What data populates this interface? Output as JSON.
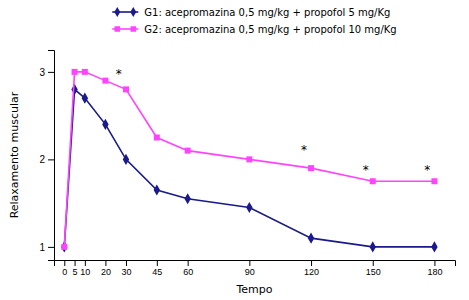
{
  "chart_data": {
    "type": "line",
    "x": [
      0,
      5,
      10,
      20,
      30,
      45,
      60,
      90,
      120,
      150,
      180
    ],
    "series": [
      {
        "name": "G1: acepromazina 0,5 mg/kg + propofol 5 mg/Kg",
        "color": "#1a1a8c",
        "marker": "diamond",
        "values": [
          1.0,
          2.8,
          2.7,
          2.4,
          2.0,
          1.65,
          1.55,
          1.45,
          1.1,
          1.0,
          1.0
        ]
      },
      {
        "name": "G2: acepromazina 0,5 mg/kg + propofol 10 mg/Kg",
        "color": "#FF44FF",
        "marker": "square",
        "values": [
          1.0,
          3.0,
          3.0,
          2.9,
          2.8,
          2.25,
          2.1,
          2.0,
          1.9,
          1.75,
          1.75
        ]
      }
    ],
    "xlabel": "Tempo",
    "ylabel": "Relaxamento muscular",
    "xlim": [
      -5,
      190
    ],
    "ylim": [
      0.85,
      3.25
    ],
    "xticks": [
      0,
      5,
      10,
      20,
      30,
      45,
      60,
      90,
      120,
      150,
      180
    ],
    "yticks": [
      1,
      2,
      3
    ],
    "annotations": [
      {
        "x": 28,
        "y": 2.93,
        "text": "*"
      },
      {
        "x": 118,
        "y": 2.06,
        "text": "*"
      },
      {
        "x": 148,
        "y": 1.83,
        "text": "*"
      },
      {
        "x": 178,
        "y": 1.83,
        "text": "*"
      }
    ],
    "grid": false,
    "legend": "top"
  }
}
